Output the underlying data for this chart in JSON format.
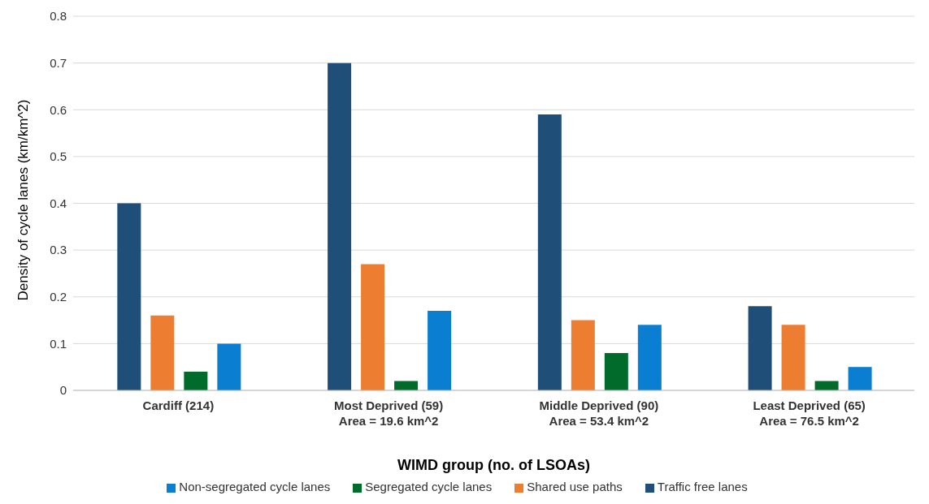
{
  "chart_data": {
    "type": "bar",
    "xlabel": "WIMD group (no. of LSOAs)",
    "ylabel": "Density of cycle lanes (km/km^2)",
    "categories": [
      "Cardiff (214)",
      "Most Deprived (59)\nArea = 19.6 km^2",
      "Middle Deprived (90)\nArea = 53.4 km^2",
      "Least Deprived (65)\nArea = 76.5 km^2"
    ],
    "series": [
      {
        "name": "Traffic free lanes",
        "color": "#1f4e79",
        "values": [
          0.4,
          0.7,
          0.59,
          0.18
        ]
      },
      {
        "name": "Shared use paths",
        "color": "#ed7d31",
        "values": [
          0.16,
          0.27,
          0.15,
          0.14
        ]
      },
      {
        "name": "Segregated cycle lanes",
        "color": "#006b2a",
        "values": [
          0.04,
          0.02,
          0.08,
          0.02
        ]
      },
      {
        "name": "Non-segregated cycle lanes",
        "color": "#0a7fd1",
        "values": [
          0.1,
          0.17,
          0.14,
          0.05
        ]
      }
    ],
    "ylim": [
      0,
      0.8
    ],
    "yticks": [
      0,
      0.1,
      0.2,
      0.3,
      0.4,
      0.5,
      0.6,
      0.7,
      0.8
    ],
    "grid": "y",
    "legend": "bottom"
  }
}
